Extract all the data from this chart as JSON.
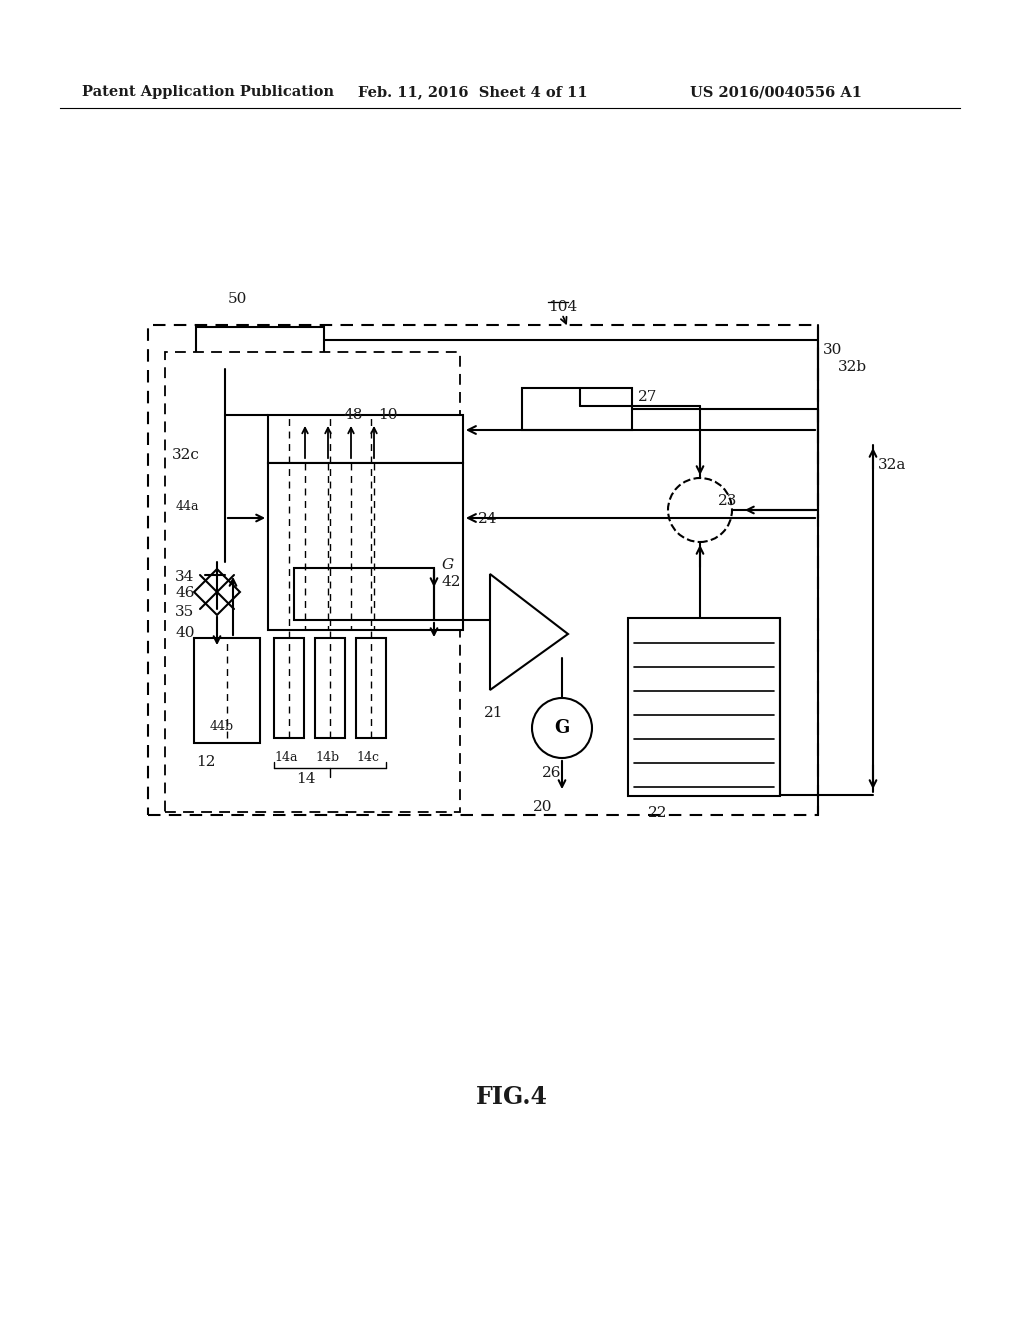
{
  "bg_color": "#ffffff",
  "header_left": "Patent Application Publication",
  "header_mid": "Feb. 11, 2016  Sheet 4 of 11",
  "header_right": "US 2016/0040556 A1",
  "figure_label": "FIG.4",
  "line_color": "#1a1a1a",
  "text_color": "#1a1a1a"
}
